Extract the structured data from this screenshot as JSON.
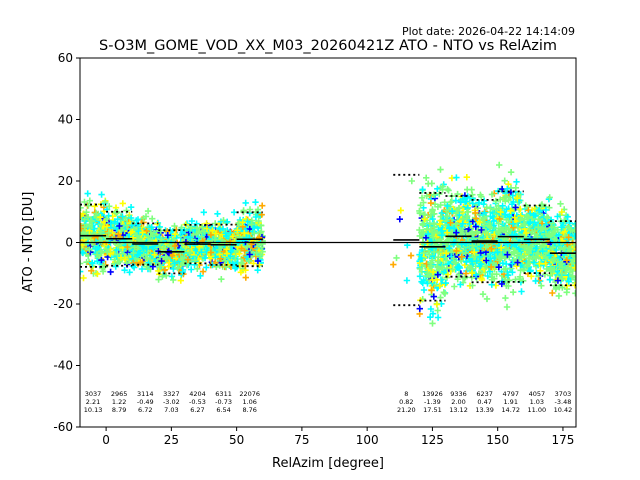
{
  "plot_date": "Plot date: 2026-04-22 14:14:09",
  "chart_data": {
    "type": "scatter",
    "title": "S-O3M_GOME_VOD_XX_M03_20260421Z ATO - NTO vs RelAzim",
    "xlabel": "RelAzim [degree]",
    "ylabel": "ATO - NTO [DU]",
    "xlim": [
      -10,
      180
    ],
    "ylim": [
      -60,
      60
    ],
    "x_ticks": [
      0,
      25,
      50,
      75,
      100,
      125,
      150,
      175
    ],
    "y_ticks": [
      -60,
      -40,
      -20,
      0,
      20,
      40,
      60
    ],
    "grid": false,
    "legend": "none",
    "zero_line": 0,
    "point_color_scale": [
      "#0000ff",
      "#00ffff",
      "#7fff7f",
      "#ffff00",
      "#ffaa00"
    ],
    "bins": [
      {
        "x_range": [
          -10,
          0
        ],
        "count": "3037",
        "mean": "2.21",
        "std": "10.13"
      },
      {
        "x_range": [
          0,
          10
        ],
        "count": "2965",
        "mean": "1.22",
        "std": "8.79"
      },
      {
        "x_range": [
          10,
          20
        ],
        "count": "3114",
        "mean": "-0.49",
        "std": "6.72"
      },
      {
        "x_range": [
          20,
          30
        ],
        "count": "3327",
        "mean": "-3.02",
        "std": "7.03"
      },
      {
        "x_range": [
          30,
          40
        ],
        "count": "4204",
        "mean": "-0.53",
        "std": "6.27"
      },
      {
        "x_range": [
          40,
          50
        ],
        "count": "6311",
        "mean": "-0.73",
        "std": "6.54"
      },
      {
        "x_range": [
          50,
          60
        ],
        "count": "22076",
        "mean": "1.06",
        "std": "8.76"
      },
      {
        "x_range": [
          110,
          120
        ],
        "count": "8",
        "mean": "0.82",
        "std": "21.20"
      },
      {
        "x_range": [
          120,
          130
        ],
        "count": "13926",
        "mean": "-1.39",
        "std": "17.51"
      },
      {
        "x_range": [
          130,
          140
        ],
        "count": "9336",
        "mean": "2.00",
        "std": "13.12"
      },
      {
        "x_range": [
          140,
          150
        ],
        "count": "6237",
        "mean": "0.47",
        "std": "13.39"
      },
      {
        "x_range": [
          150,
          160
        ],
        "count": "4797",
        "mean": "1.91",
        "std": "14.72"
      },
      {
        "x_range": [
          160,
          170
        ],
        "count": "4057",
        "mean": "1.03",
        "std": "11.00"
      },
      {
        "x_range": [
          170,
          180
        ],
        "count": "3703",
        "mean": "-3.48",
        "std": "10.42"
      }
    ]
  }
}
